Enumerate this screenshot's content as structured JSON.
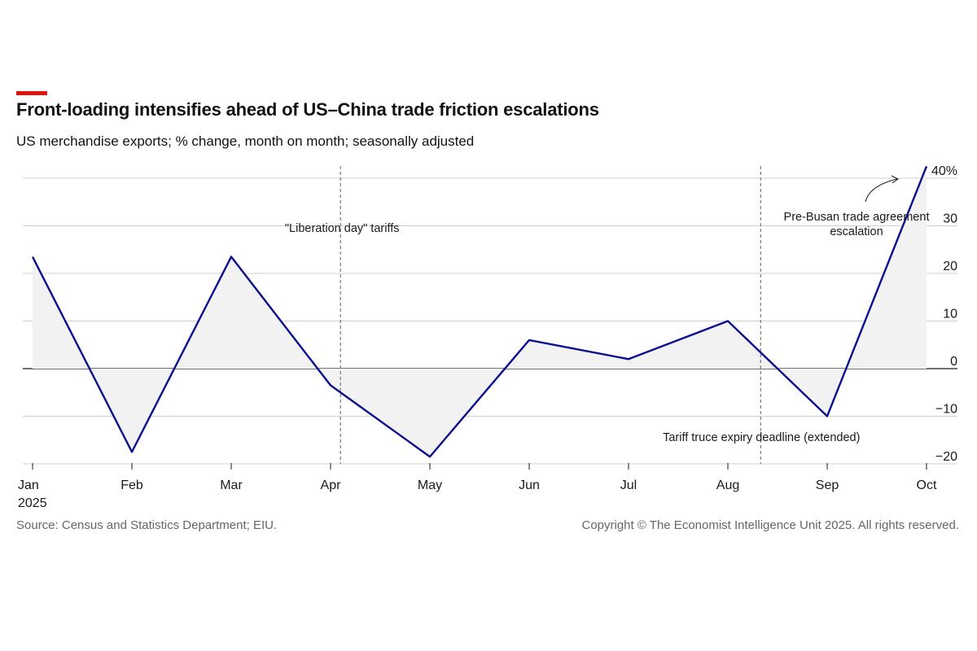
{
  "header": {
    "title": "Front-loading intensifies ahead of US–China trade friction escalations",
    "subtitle": "US merchandise exports; % change, month on month; seasonally adjusted",
    "accent_color": "#e3120b"
  },
  "footer": {
    "source": "Source: Census and Statistics Department; EIU.",
    "copyright": "Copyright © The Economist Intelligence Unit 2025. All rights reserved."
  },
  "chart_data": {
    "type": "line",
    "x": [
      "Jan",
      "Feb",
      "Mar",
      "Apr",
      "May",
      "Jun",
      "Jul",
      "Aug",
      "Sep",
      "Oct"
    ],
    "x_year_label": "2025",
    "series": [
      {
        "values": [
          23.5,
          -17.5,
          23.5,
          -3.5,
          -18.5,
          6,
          2,
          10,
          -10,
          42.5
        ],
        "color": "#0a0f8f"
      }
    ],
    "ylim": [
      -20,
      42
    ],
    "yticks": [
      -20,
      -10,
      0,
      10,
      20,
      30,
      40
    ],
    "ytick_labels": [
      "−20",
      "−10",
      "0",
      "10",
      "20",
      "30",
      "40%"
    ],
    "area_fill": "#f2f2f2",
    "grid": true,
    "annotations": [
      {
        "text": "\"Liberation day\" tariffs",
        "x_between": [
          "Apr",
          "May"
        ],
        "x_fraction": 0.1
      },
      {
        "text": "Tariff truce expiry deadline (extended)",
        "x_between": [
          "Aug",
          "Sep"
        ],
        "x_fraction": 0.33
      },
      {
        "lines": [
          "Pre-Busan trade agreement",
          "escalation"
        ],
        "points_to": "Oct"
      }
    ]
  }
}
